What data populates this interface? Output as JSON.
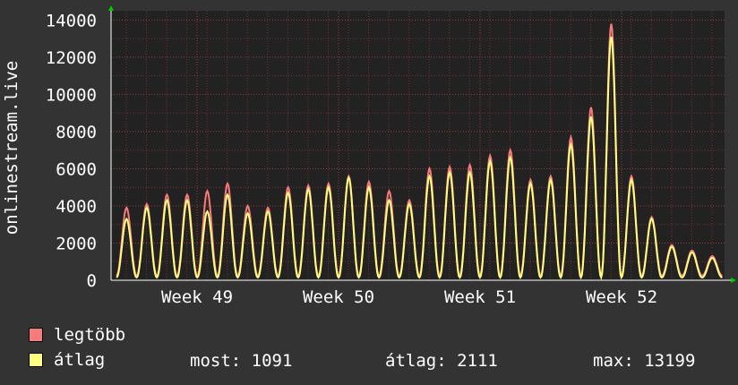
{
  "chart_data": {
    "type": "line",
    "ylabel": "onlinestream.live",
    "ylim": [
      0,
      14500
    ],
    "yticks": [
      0,
      2000,
      4000,
      6000,
      8000,
      10000,
      12000,
      14000
    ],
    "xticks": [
      "Week 49",
      "Week 50",
      "Week 51",
      "Week 52"
    ],
    "grid": true,
    "peaks_max": [
      3900,
      4100,
      4600,
      4600,
      4800,
      5200,
      4000,
      3900,
      5000,
      5100,
      5200,
      5600,
      5300,
      4800,
      4300,
      6000,
      6100,
      6200,
      6700,
      7000,
      5400,
      5600,
      7700,
      9300,
      13800,
      5600,
      3400,
      1900,
      1600,
      1300,
      1200
    ],
    "peaks_avg": [
      3300,
      3900,
      4300,
      4300,
      3700,
      4600,
      3600,
      3700,
      4700,
      4900,
      5000,
      5500,
      5000,
      4300,
      4100,
      5600,
      5800,
      5800,
      6400,
      6600,
      5200,
      5400,
      7300,
      8800,
      13100,
      5400,
      3300,
      1800,
      1500,
      1200,
      1100
    ],
    "series": [
      {
        "name": "legtöbb",
        "color": "#f77b7b"
      },
      {
        "name": "átlag",
        "color": "#ffff80"
      }
    ]
  },
  "legend": {
    "max_label": "legtöbb",
    "avg_label": "átlag",
    "now_text": "most: 1091",
    "avg_text": "átlag: 2111",
    "max_text": "max: 13199"
  },
  "colors": {
    "background": "#333333",
    "plot_background": "#222222",
    "grid": "#7a2e2e",
    "max_series": "#f77b7b",
    "avg_series": "#ffff80"
  }
}
